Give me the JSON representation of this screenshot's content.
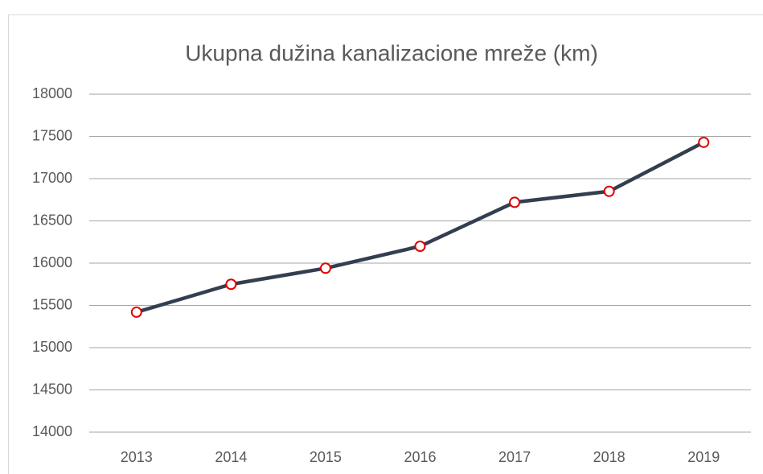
{
  "chart_data": {
    "type": "line",
    "title": "Ukupna dužina kanalizacione mreže (km)",
    "categories": [
      "2013",
      "2014",
      "2015",
      "2016",
      "2017",
      "2018",
      "2019"
    ],
    "series": [
      {
        "name": "Ukupna dužina kanalizacione mreže (km)",
        "color": "#333f50",
        "marker_color": "#e00000",
        "values": [
          15420,
          15750,
          15940,
          16200,
          16720,
          16850,
          17430
        ]
      }
    ],
    "ylim": [
      14000,
      18000
    ],
    "yticks": [
      14000,
      14500,
      15000,
      15500,
      16000,
      16500,
      17000,
      17500,
      18000
    ],
    "grid": true
  }
}
